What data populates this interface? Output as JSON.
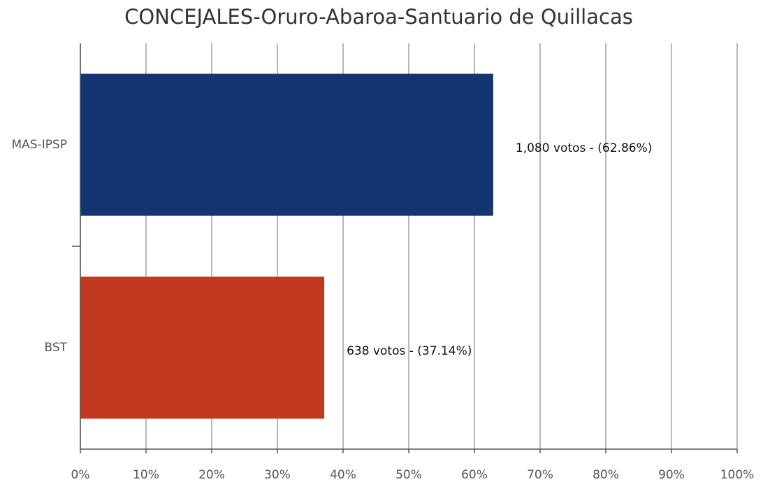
{
  "chart_data": {
    "type": "barh",
    "title": "CONCEJALES-Oruro-Abaroa-Santuario de Quillacas",
    "categories": [
      "MAS-IPSP",
      "BST"
    ],
    "series": [
      {
        "name": "Votos",
        "values": [
          62.86,
          37.14
        ],
        "colors": [
          "#143670",
          "#c13a1f"
        ],
        "value_labels": [
          "1,080 votos - (62.86%)",
          "638 votos - (37.14%)"
        ]
      }
    ],
    "xlim": [
      0,
      100
    ],
    "xticks": [
      {
        "value": 0,
        "label": "0%"
      },
      {
        "value": 10,
        "label": "10%"
      },
      {
        "value": 20,
        "label": "20%"
      },
      {
        "value": 30,
        "label": "30%"
      },
      {
        "value": 40,
        "label": "40%"
      },
      {
        "value": 50,
        "label": "50%"
      },
      {
        "value": 60,
        "label": "60%"
      },
      {
        "value": 70,
        "label": "70%"
      },
      {
        "value": 80,
        "label": "80%"
      },
      {
        "value": 90,
        "label": "90%"
      },
      {
        "value": 100,
        "label": "100%"
      }
    ],
    "grid": true
  }
}
